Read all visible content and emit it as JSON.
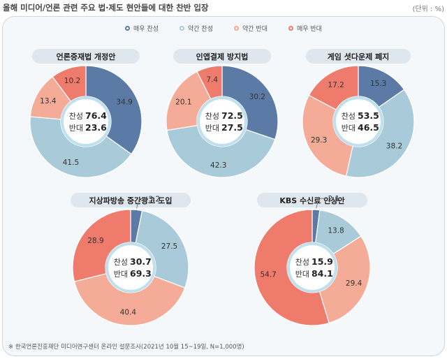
{
  "title": "올해 미디어/언론 관련 주요 법·제도 현안들에 대한 찬반 입장",
  "unit": "(단위 : %)",
  "legend": [
    {
      "label": "매우 찬성",
      "color": "#5b7aa5"
    },
    {
      "label": "약간 찬성",
      "color": "#a8cad9"
    },
    {
      "label": "약간 반대",
      "color": "#f4ab97"
    },
    {
      "label": "매우 반대",
      "color": "#ee7b6b"
    }
  ],
  "footnote": "※ 한국언론진흥재단 미디어연구센터 온라인 설문조사(2021년 10월 15~19일, N=1,000명)",
  "chart_data": [
    {
      "type": "pie",
      "title": "언론중재법 개정안",
      "categories": [
        "매우 찬성",
        "약간 찬성",
        "약간 반대",
        "매우 반대"
      ],
      "values": [
        34.9,
        41.5,
        13.4,
        10.2
      ],
      "summary": {
        "support_label": "찬성",
        "support": "76.4",
        "oppose_label": "반대",
        "oppose": "23.6"
      }
    },
    {
      "type": "pie",
      "title": "인앱결제 방지법",
      "categories": [
        "매우 찬성",
        "약간 찬성",
        "약간 반대",
        "매우 반대"
      ],
      "values": [
        30.2,
        42.3,
        20.1,
        7.4
      ],
      "summary": {
        "support_label": "찬성",
        "support": "72.5",
        "oppose_label": "반대",
        "oppose": "27.5"
      }
    },
    {
      "type": "pie",
      "title": "게임 셧다운제 폐지",
      "categories": [
        "매우 찬성",
        "약간 찬성",
        "약간 반대",
        "매우 반대"
      ],
      "values": [
        15.3,
        38.2,
        29.3,
        17.2
      ],
      "summary": {
        "support_label": "찬성",
        "support": "53.5",
        "oppose_label": "반대",
        "oppose": "46.5"
      }
    },
    {
      "type": "pie",
      "title": "지상파방송 중간광고 도입",
      "categories": [
        "매우 찬성",
        "약간 찬성",
        "약간 반대",
        "매우 반대"
      ],
      "values": [
        3.2,
        27.5,
        40.4,
        28.9
      ],
      "summary": {
        "support_label": "찬성",
        "support": "30.7",
        "oppose_label": "반대",
        "oppose": "69.3"
      }
    },
    {
      "type": "pie",
      "title": "KBS 수신료 인상안",
      "categories": [
        "매우 찬성",
        "약간 찬성",
        "약간 반대",
        "매우 반대"
      ],
      "values": [
        2.1,
        13.8,
        29.4,
        54.7
      ],
      "summary": {
        "support_label": "찬성",
        "support": "15.9",
        "oppose_label": "반대",
        "oppose": "84.1"
      }
    }
  ]
}
